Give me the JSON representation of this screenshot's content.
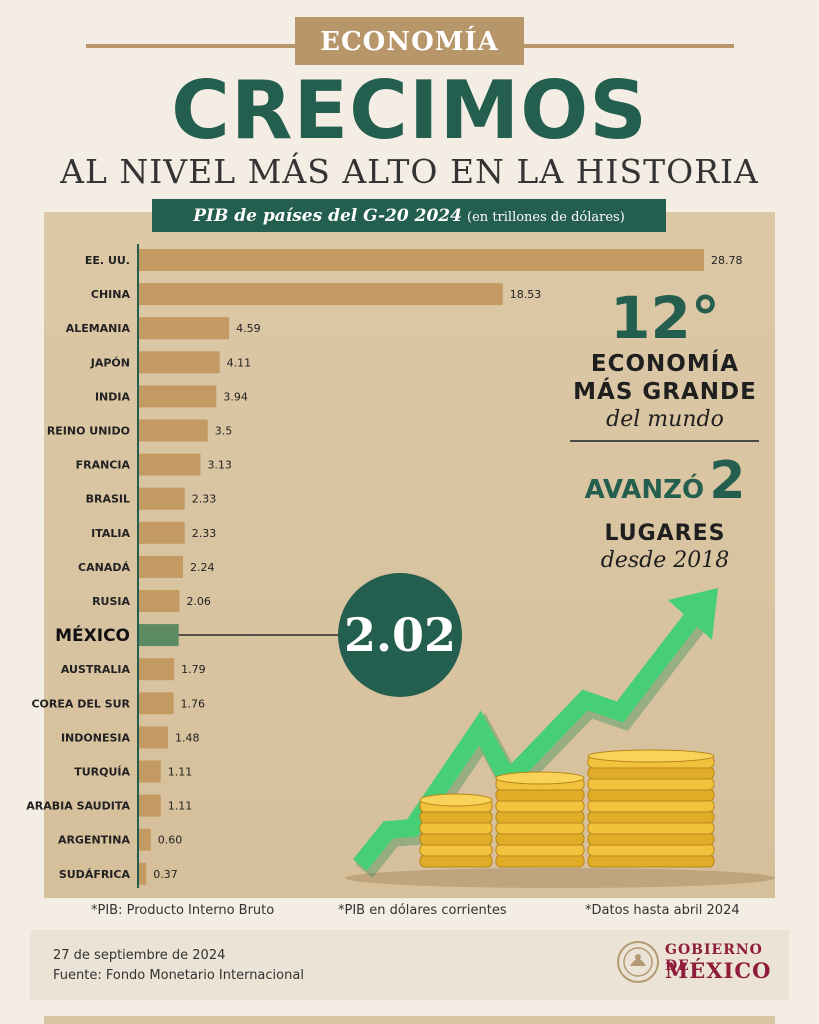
{
  "section_tag": "ECONOMÍA",
  "headline": "CRECIMOS",
  "subheadline": "AL NIVEL MÁS ALTO EN LA HISTORIA",
  "chart_title": "PIB de países del G-20 2024",
  "chart_units": "(en trillones de dólares)",
  "highlight_value": "2.02",
  "rank": {
    "number": "12°",
    "line1": "ECONOMÍA",
    "line2": "MÁS GRANDE",
    "line3": "del mundo"
  },
  "advance": {
    "word": "AVANZÓ",
    "number": "2",
    "line2": "LUGARES",
    "line3": "desde 2018"
  },
  "footnotes": {
    "pib": "*PIB: Producto Interno Bruto",
    "current": "*PIB en dólares corrientes",
    "data_date": "*Datos hasta abril 2024"
  },
  "footer": {
    "date": "27 de septiembre de 2024",
    "source": "Fuente: Fondo Monetario Internacional",
    "gov_line1": "GOBIERNO DE",
    "gov_line2": "MÉXICO"
  },
  "colors": {
    "bar": "#c49a63",
    "highlight_bar": "#5b8a63",
    "green": "#245e4e",
    "gov": "#8e1c3a"
  },
  "chart_data": {
    "type": "bar",
    "orientation": "horizontal",
    "title": "PIB de países del G-20 2024",
    "ylabel": "",
    "xlabel": "",
    "categories": [
      "EE. UU.",
      "CHINA",
      "ALEMANIA",
      "JAPÓN",
      "INDIA",
      "REINO UNIDO",
      "FRANCIA",
      "BRASIL",
      "ITALIA",
      "CANADÁ",
      "RUSIA",
      "MÉXICO",
      "AUSTRALIA",
      "COREA DEL SUR",
      "INDONESIA",
      "TURQUÍA",
      "ARABIA SAUDITA",
      "ARGENTINA",
      "SUDÁFRICA"
    ],
    "values": [
      28.78,
      18.53,
      4.59,
      4.11,
      3.94,
      3.5,
      3.13,
      2.33,
      2.33,
      2.24,
      2.06,
      2.02,
      1.79,
      1.76,
      1.48,
      1.11,
      1.11,
      0.6,
      0.37
    ],
    "value_labels": [
      "28.78",
      "18.53",
      "4.59",
      "4.11",
      "3.94",
      "3.5",
      "3.13",
      "2.33",
      "2.33",
      "2.24",
      "2.06",
      "",
      "1.79",
      "1.76",
      "1.48",
      "1.11",
      "1.11",
      "0.60",
      "0.37"
    ],
    "highlight": "MÉXICO",
    "grid": false
  }
}
